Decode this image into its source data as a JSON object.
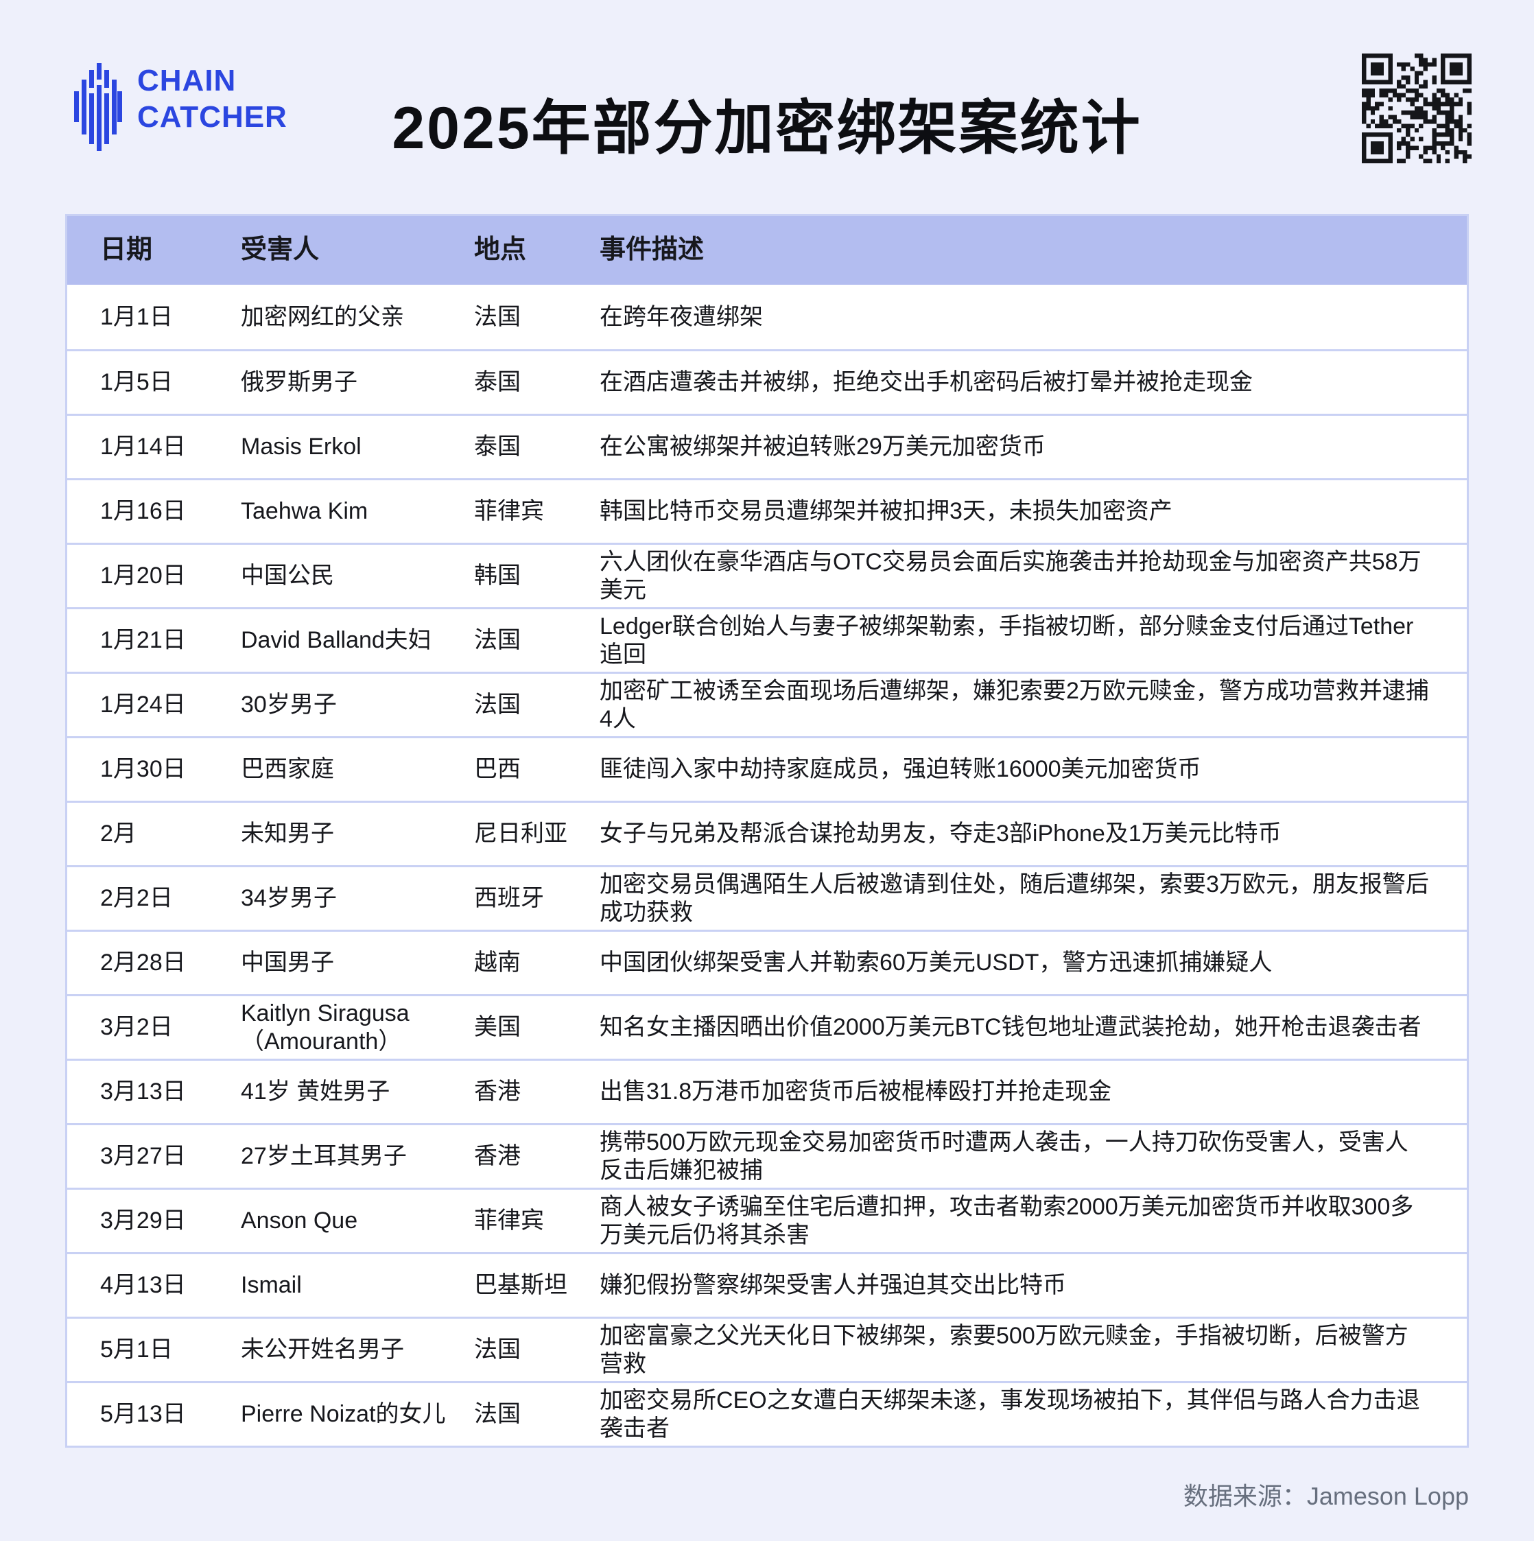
{
  "page": {
    "title": "2025年部分加密绑架案统计",
    "source_note": "数据来源：Jameson Lopp"
  },
  "logo": {
    "line1": "CHAIN",
    "line2": "CATCHER",
    "icon": "chaincatcher-bars-icon"
  },
  "qr": {
    "icon": "qr-code-icon"
  },
  "colors": {
    "page_bg": "#eef0fb",
    "header_bg": "#b3bdf0",
    "row_bg": "#ffffff",
    "border": "#c9d1f4",
    "accent_blue": "#2b46e0",
    "text": "#17181d",
    "footer_gray": "#676f7e"
  },
  "table": {
    "headers": {
      "date": "日期",
      "victim": "受害人",
      "location": "地点",
      "description": "事件描述"
    },
    "rows": [
      {
        "date": "1月1日",
        "victim": "加密网红的父亲",
        "location": "法国",
        "description": "在跨年夜遭绑架"
      },
      {
        "date": "1月5日",
        "victim": "俄罗斯男子",
        "location": "泰国",
        "description": "在酒店遭袭击并被绑，拒绝交出手机密码后被打晕并被抢走现金"
      },
      {
        "date": "1月14日",
        "victim": "Masis Erkol",
        "location": "泰国",
        "description": "在公寓被绑架并被迫转账29万美元加密货币"
      },
      {
        "date": "1月16日",
        "victim": "Taehwa Kim",
        "location": "菲律宾",
        "description": "韩国比特币交易员遭绑架并被扣押3天，未损失加密资产"
      },
      {
        "date": "1月20日",
        "victim": "中国公民",
        "location": "韩国",
        "description": "六人团伙在豪华酒店与OTC交易员会面后实施袭击并抢劫现金与加密资产共58万美元"
      },
      {
        "date": "1月21日",
        "victim": "David Balland夫妇",
        "location": "法国",
        "description": "Ledger联合创始人与妻子被绑架勒索，手指被切断，部分赎金支付后通过Tether追回"
      },
      {
        "date": "1月24日",
        "victim": "30岁男子",
        "location": "法国",
        "description": "加密矿工被诱至会面现场后遭绑架，嫌犯索要2万欧元赎金，警方成功营救并逮捕4人"
      },
      {
        "date": "1月30日",
        "victim": "巴西家庭",
        "location": "巴西",
        "description": "匪徒闯入家中劫持家庭成员，强迫转账16000美元加密货币"
      },
      {
        "date": "2月",
        "victim": "未知男子",
        "location": "尼日利亚",
        "description": "女子与兄弟及帮派合谋抢劫男友，夺走3部iPhone及1万美元比特币"
      },
      {
        "date": "2月2日",
        "victim": "34岁男子",
        "location": "西班牙",
        "description": "加密交易员偶遇陌生人后被邀请到住处，随后遭绑架，索要3万欧元，朋友报警后成功获救"
      },
      {
        "date": "2月28日",
        "victim": "中国男子",
        "location": "越南",
        "description": "中国团伙绑架受害人并勒索60万美元USDT，警方迅速抓捕嫌疑人"
      },
      {
        "date": "3月2日",
        "victim": "Kaitlyn Siragusa\n（Amouranth）",
        "location": "美国",
        "description": "知名女主播因晒出价值2000万美元BTC钱包地址遭武装抢劫，她开枪击退袭击者"
      },
      {
        "date": "3月13日",
        "victim": "41岁 黄姓男子",
        "location": "香港",
        "description": "出售31.8万港币加密货币后被棍棒殴打并抢走现金"
      },
      {
        "date": "3月27日",
        "victim": "27岁土耳其男子",
        "location": "香港",
        "description": "携带500万欧元现金交易加密货币时遭两人袭击，一人持刀砍伤受害人，受害人反击后嫌犯被捕"
      },
      {
        "date": "3月29日",
        "victim": "Anson Que",
        "location": "菲律宾",
        "description": "商人被女子诱骗至住宅后遭扣押，攻击者勒索2000万美元加密货币并收取300多万美元后仍将其杀害"
      },
      {
        "date": "4月13日",
        "victim": "Ismail",
        "location": "巴基斯坦",
        "description": "嫌犯假扮警察绑架受害人并强迫其交出比特币"
      },
      {
        "date": "5月1日",
        "victim": "未公开姓名男子",
        "location": "法国",
        "description": "加密富豪之父光天化日下被绑架，索要500万欧元赎金，手指被切断，后被警方营救"
      },
      {
        "date": "5月13日",
        "victim": "Pierre Noizat的女儿",
        "location": "法国",
        "description": "加密交易所CEO之女遭白天绑架未遂，事发现场被拍下，其伴侣与路人合力击退袭击者"
      }
    ]
  }
}
